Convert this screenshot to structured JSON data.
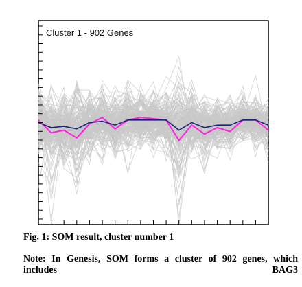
{
  "caption": "Fig. 1: SOM result, cluster number 1",
  "note": "Note: In Genesis, SOM forms a cluster of 902 genes, which includes BAG3",
  "colors": {
    "background_lines": "#c8c8c8",
    "mean_line": "#1a237e",
    "highlight_line": "#ff22dd",
    "frame": "#000000"
  },
  "chart_data": {
    "type": "line",
    "title": "Cluster 1 - 902 Genes",
    "xlabel": "",
    "ylabel": "",
    "x": [
      1,
      2,
      3,
      4,
      5,
      6,
      7,
      8,
      9,
      10,
      11,
      12,
      13,
      14,
      15,
      16,
      17,
      18,
      19
    ],
    "ylim": [
      -4,
      4
    ],
    "grid": false,
    "series": [
      {
        "role": "mean",
        "values": [
          0,
          -0.2,
          -0.15,
          -0.25,
          0,
          0.05,
          -0.1,
          0.1,
          0.1,
          0.1,
          0.1,
          -0.3,
          0,
          -0.2,
          -0.1,
          -0.1,
          0.1,
          0.1,
          -0.1
        ]
      },
      {
        "role": "highlight",
        "values": [
          0.1,
          -0.4,
          -0.3,
          -0.6,
          -0.05,
          0.2,
          -0.25,
          0.1,
          0.2,
          0.15,
          0.1,
          -0.7,
          -0.1,
          -0.45,
          -0.2,
          -0.35,
          0.1,
          0.1,
          -0.3
        ]
      }
    ],
    "background_profiles": 902
  }
}
